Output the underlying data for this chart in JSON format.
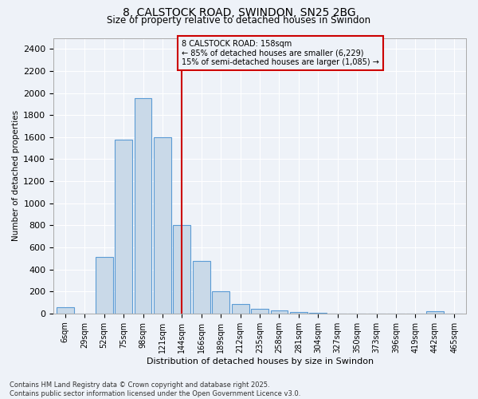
{
  "title1": "8, CALSTOCK ROAD, SWINDON, SN25 2BG",
  "title2": "Size of property relative to detached houses in Swindon",
  "xlabel": "Distribution of detached houses by size in Swindon",
  "ylabel": "Number of detached properties",
  "bar_color": "#c9d9e8",
  "bar_edgecolor": "#5b9bd5",
  "categories": [
    "6sqm",
    "29sqm",
    "52sqm",
    "75sqm",
    "98sqm",
    "121sqm",
    "144sqm",
    "166sqm",
    "189sqm",
    "212sqm",
    "235sqm",
    "258sqm",
    "281sqm",
    "304sqm",
    "327sqm",
    "350sqm",
    "373sqm",
    "396sqm",
    "419sqm",
    "442sqm",
    "465sqm"
  ],
  "values": [
    55,
    0,
    510,
    1580,
    1950,
    1600,
    800,
    480,
    200,
    85,
    40,
    25,
    15,
    5,
    0,
    0,
    0,
    0,
    0,
    20,
    0
  ],
  "vline_x": 6.0,
  "vline_color": "#cc0000",
  "annotation_box_text": "8 CALSTOCK ROAD: 158sqm\n← 85% of detached houses are smaller (6,229)\n15% of semi-detached houses are larger (1,085) →",
  "ylim": [
    0,
    2500
  ],
  "yticks": [
    0,
    200,
    400,
    600,
    800,
    1000,
    1200,
    1400,
    1600,
    1800,
    2000,
    2200,
    2400
  ],
  "background_color": "#eef2f8",
  "grid_color": "#ffffff",
  "footer_line1": "Contains HM Land Registry data © Crown copyright and database right 2025.",
  "footer_line2": "Contains public sector information licensed under the Open Government Licence v3.0."
}
